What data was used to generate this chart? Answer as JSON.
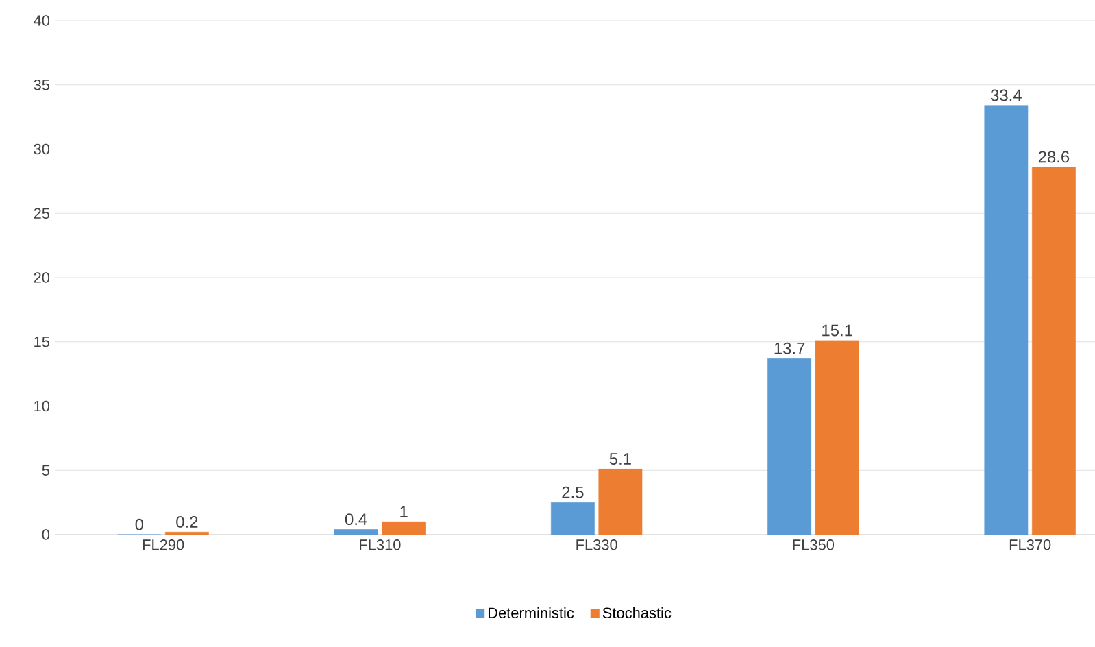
{
  "chart_data": {
    "type": "bar",
    "categories": [
      "FL290",
      "FL310",
      "FL330",
      "FL350",
      "FL370"
    ],
    "series": [
      {
        "name": "Deterministic",
        "color": "#5b9bd5",
        "values": [
          0,
          0.4,
          2.5,
          13.7,
          33.4
        ]
      },
      {
        "name": "Stochastic",
        "color": "#ed7d31",
        "values": [
          0.2,
          1,
          5.1,
          15.1,
          28.6
        ]
      }
    ],
    "ylim": [
      0,
      40
    ],
    "yticks": [
      0,
      5,
      10,
      15,
      20,
      25,
      30,
      35,
      40
    ],
    "grid": "y",
    "legend": "bottom",
    "data_labels": true
  }
}
